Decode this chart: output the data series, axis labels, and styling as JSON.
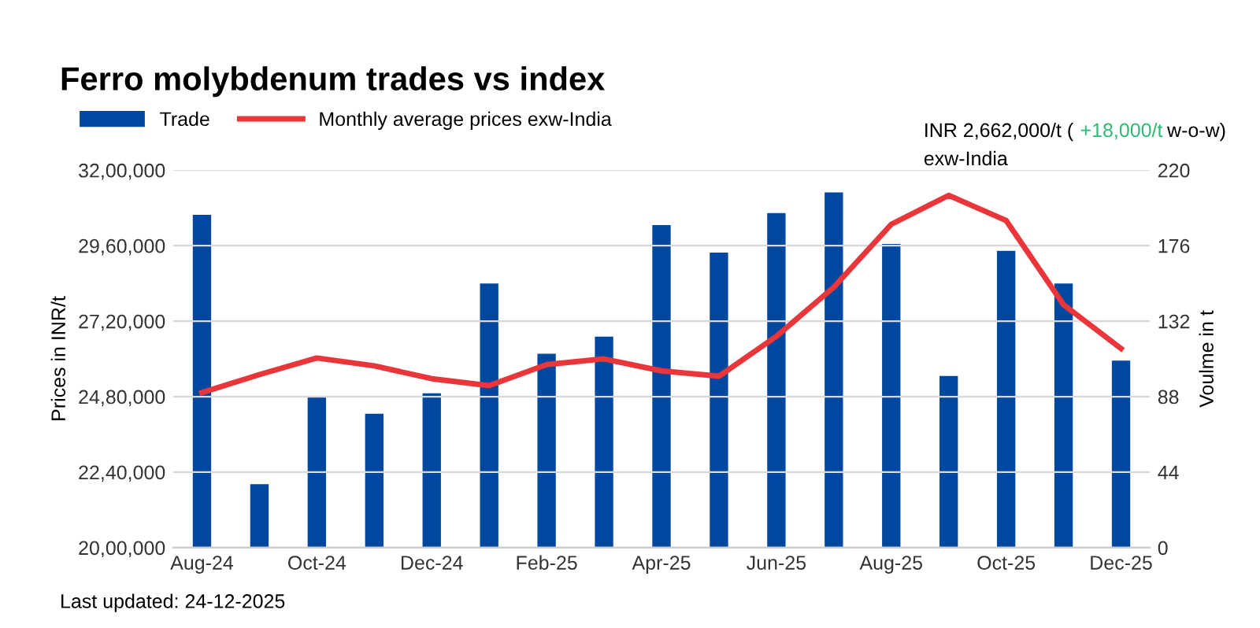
{
  "chart_data": {
    "type": "bar",
    "title": "Ferro molybdenum trades vs index",
    "categories": [
      "Aug-24",
      null,
      "Oct-24",
      null,
      "Dec-24",
      null,
      "Feb-25",
      null,
      "Apr-25",
      null,
      "Jun-25",
      null,
      "Aug-25",
      null,
      "Oct-25",
      null,
      "Dec-25"
    ],
    "series": [
      {
        "name": "Trade",
        "axis": "y2",
        "color": "#0047a0",
        "values": [
          194,
          37,
          88,
          78,
          90,
          154,
          113,
          123,
          188,
          172,
          195,
          207,
          177,
          100,
          173,
          154,
          109
        ]
      },
      {
        "name": "Monthly average prices exw-India",
        "type": "line",
        "color": "#e8363a",
        "values": [
          2493000,
          2550000,
          2603000,
          2578000,
          2537000,
          2515000,
          2582000,
          2600000,
          2562000,
          2545000,
          2672000,
          2828000,
          3028000,
          3120000,
          3040000,
          2772000,
          2633000
        ]
      }
    ],
    "ylabel": "Prices in INR/t",
    "y2label": "Voulme in t",
    "ylim": [
      2000000,
      3200000
    ],
    "yticks": [
      {
        "value": 2000000,
        "label": "20,00,000"
      },
      {
        "value": 2240000,
        "label": "22,40,000"
      },
      {
        "value": 2480000,
        "label": "24,80,000"
      },
      {
        "value": 2720000,
        "label": "27,20,000"
      },
      {
        "value": 2960000,
        "label": "29,60,000"
      },
      {
        "value": 3200000,
        "label": "32,00,000"
      }
    ],
    "y2lim": [
      0,
      220
    ],
    "y2ticks": [
      0,
      44,
      88,
      132,
      176,
      220
    ],
    "grid": "y",
    "legend": "top left",
    "marker": "none",
    "line_style": "solid",
    "annotations": [
      "INR 2,662,000/t (",
      "+18,000/t",
      "w-o-w)",
      "exw-India",
      "Last updated: 24-12-2025"
    ]
  }
}
